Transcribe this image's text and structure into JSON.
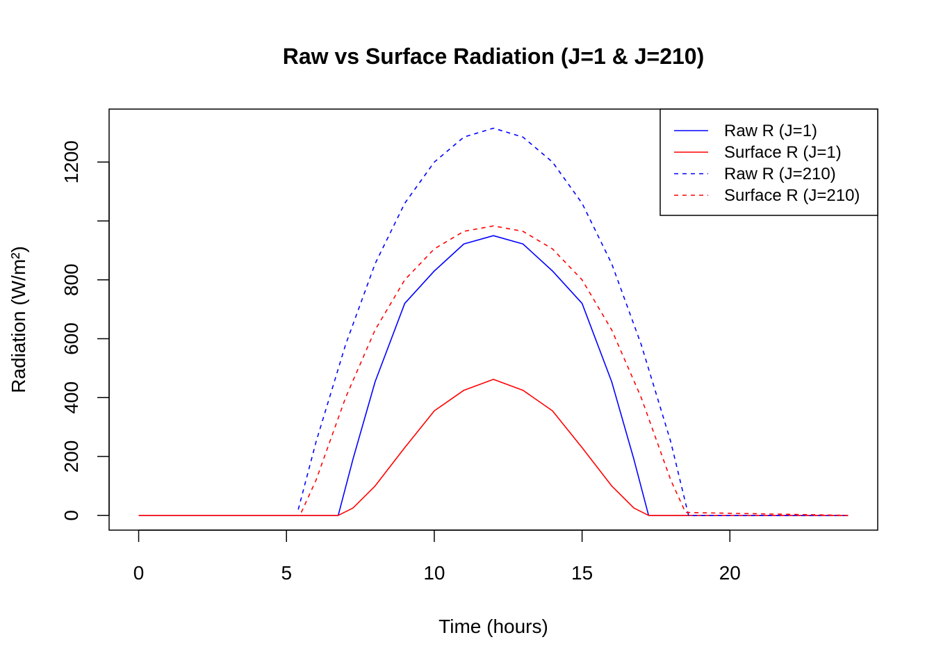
{
  "chart_data": {
    "type": "line",
    "title": "Raw vs Surface Radiation (J=1 & J=210)",
    "xlabel": "Time (hours)",
    "ylabel": "Radiation (W/m²)",
    "xlim": [
      -1,
      25
    ],
    "ylim": [
      -50,
      1380
    ],
    "xticks": [
      0,
      5,
      10,
      15,
      20
    ],
    "xtick_labels": [
      "0",
      "5",
      "10",
      "15",
      "20"
    ],
    "yticks": [
      0,
      200,
      400,
      600,
      800,
      1000,
      1200
    ],
    "ytick_labels": [
      "0",
      "200",
      "400",
      "600",
      "800",
      "",
      "1200"
    ],
    "grid": false,
    "legend_position": "top-right",
    "series": [
      {
        "name": "Raw R (J=1)",
        "color": "#0000ff",
        "dash": "solid",
        "x": [
          0,
          6.75,
          7.25,
          8,
          9,
          10,
          11,
          12,
          13,
          14,
          15,
          16,
          16.75,
          17.25,
          24
        ],
        "y": [
          0,
          0,
          191,
          454,
          720,
          830,
          922,
          950,
          922,
          830,
          720,
          454,
          191,
          0,
          0
        ]
      },
      {
        "name": "Surface R (J=1)",
        "color": "#ff0000",
        "dash": "solid",
        "x": [
          0,
          6.75,
          7.25,
          8,
          9,
          10,
          11,
          12,
          13,
          14,
          15,
          16,
          16.75,
          17.25,
          24
        ],
        "y": [
          0,
          0,
          25,
          100,
          230,
          355,
          425,
          462,
          425,
          355,
          230,
          100,
          25,
          0,
          0
        ]
      },
      {
        "name": "Raw R (J=210)",
        "color": "#0000ff",
        "dash": "dashed",
        "x": [
          5.4,
          6,
          7,
          8,
          9,
          10,
          11,
          12,
          13,
          14,
          15,
          16,
          17,
          18,
          18.6,
          24
        ],
        "y": [
          20,
          250,
          580,
          855,
          1060,
          1200,
          1285,
          1315,
          1285,
          1200,
          1060,
          855,
          580,
          250,
          0,
          0
        ]
      },
      {
        "name": "Surface R (J=210)",
        "color": "#ff0000",
        "dash": "dashed",
        "x": [
          5.5,
          6,
          7,
          8,
          9,
          10,
          11,
          12,
          13,
          14,
          15,
          16,
          17,
          18,
          18.5,
          24
        ],
        "y": [
          10,
          120,
          400,
          630,
          800,
          905,
          965,
          983,
          965,
          905,
          800,
          630,
          400,
          120,
          10,
          0
        ]
      }
    ]
  }
}
